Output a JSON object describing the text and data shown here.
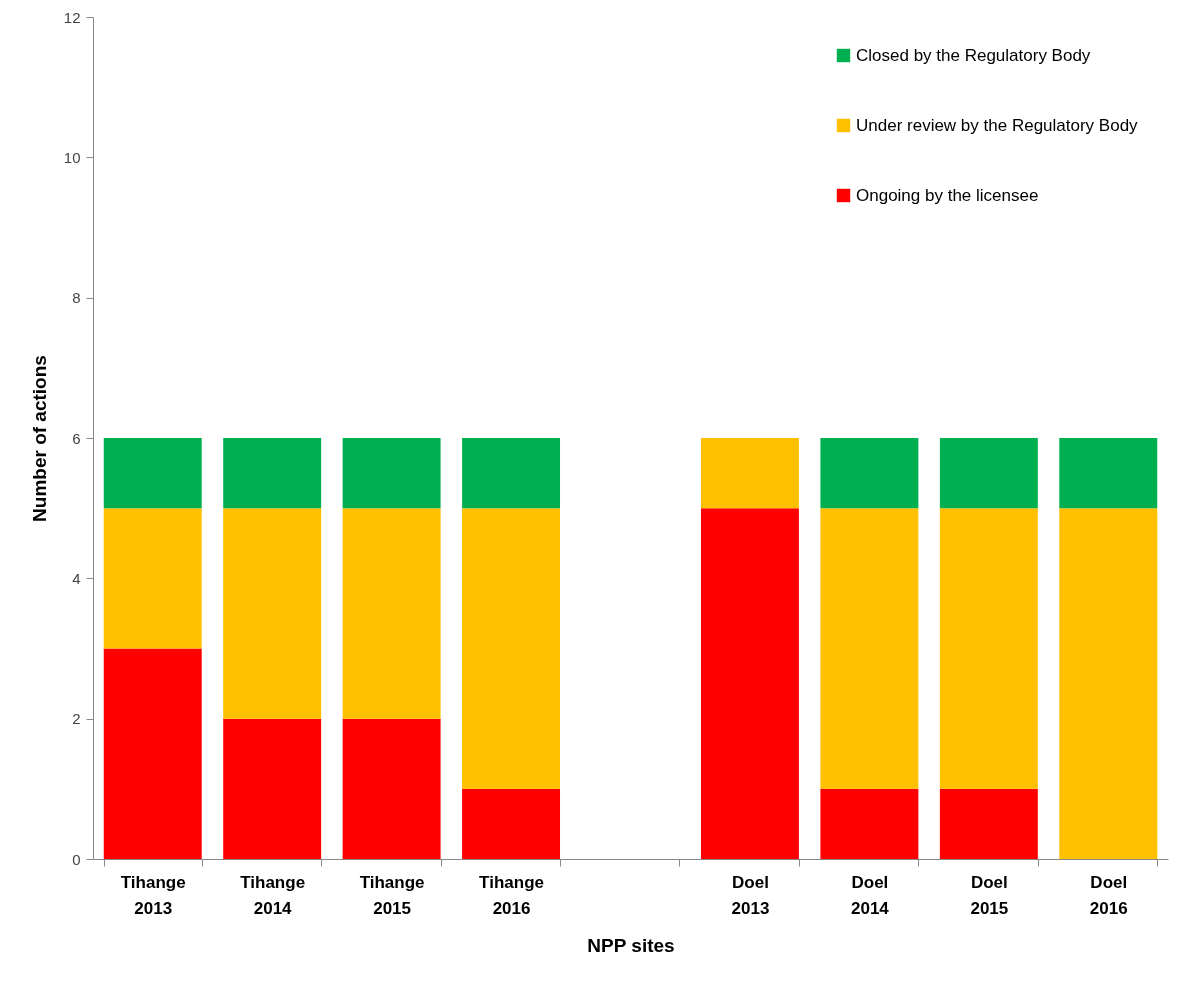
{
  "chart_data": {
    "type": "bar",
    "stacked": true,
    "xlabel": "NPP sites",
    "ylabel": "Number of actions",
    "categories": [
      "Tihange 2013",
      "Tihange 2014",
      "Tihange 2015",
      "Tihange 2016",
      null,
      "Doel 2013",
      "Doel 2014",
      "Doel 2015",
      "Doel 2016"
    ],
    "series": [
      {
        "name": "Ongoing by the licensee",
        "color": "#ff0000",
        "values": [
          3,
          2,
          2,
          1,
          null,
          5,
          1,
          1,
          0
        ]
      },
      {
        "name": "Under review by the Regulatory Body",
        "color": "#ffc000",
        "values": [
          2,
          3,
          3,
          4,
          null,
          1,
          4,
          4,
          5
        ]
      },
      {
        "name": "Closed by the Regulatory Body",
        "color": "#00b050",
        "values": [
          1,
          1,
          1,
          1,
          null,
          0,
          1,
          1,
          1
        ]
      }
    ],
    "ylim": [
      0,
      12
    ],
    "yticks": [
      0,
      2,
      4,
      6,
      8,
      10,
      12
    ],
    "legend": "top right"
  }
}
